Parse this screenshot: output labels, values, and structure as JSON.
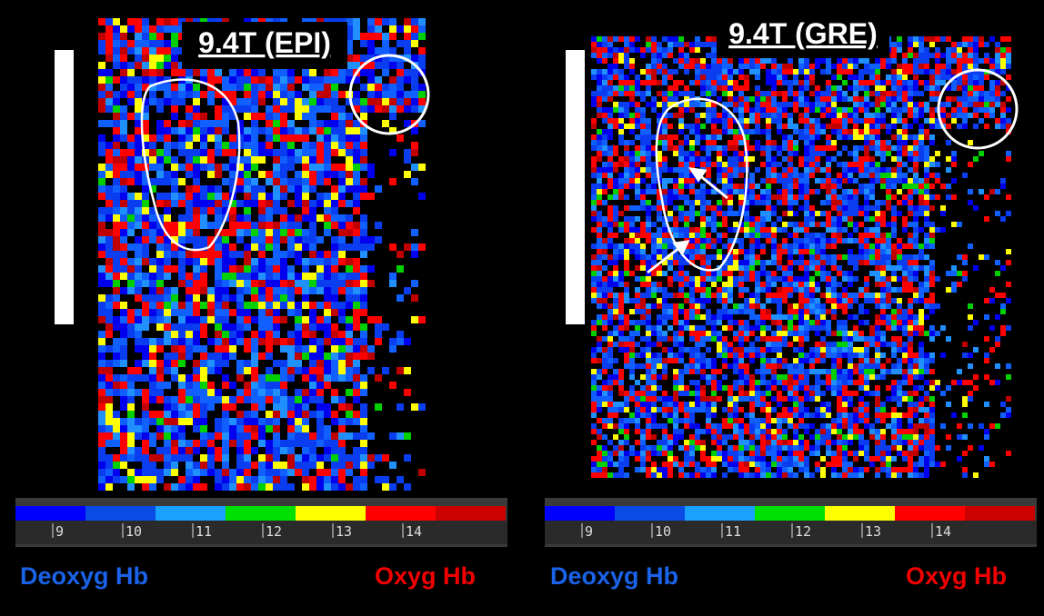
{
  "panels": [
    {
      "title": "9.4T (EPI)",
      "scale_ticks": [
        "9",
        "10",
        "11",
        "12",
        "13",
        "14"
      ],
      "low_label": "Deoxyg Hb",
      "high_label": "Oxyg Hb"
    },
    {
      "title": "9.4T (GRE)",
      "scale_ticks": [
        "9",
        "10",
        "11",
        "12",
        "13",
        "14"
      ],
      "low_label": "Deoxyg Hb",
      "high_label": "Oxyg Hb"
    }
  ]
}
